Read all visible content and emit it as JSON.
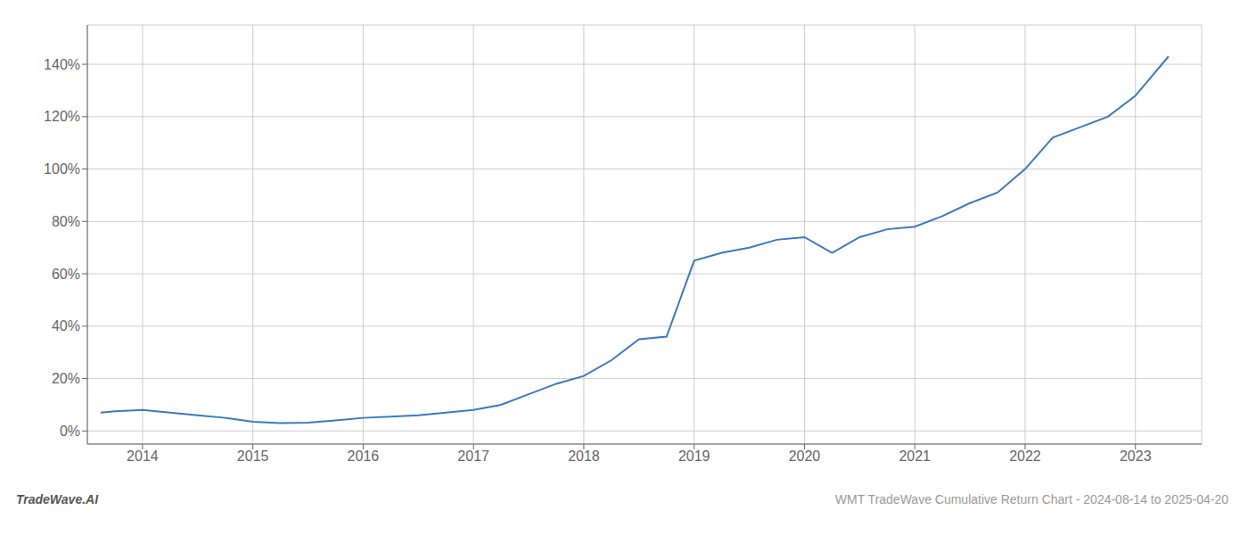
{
  "chart_data": {
    "type": "line",
    "title": "WMT TradeWave Cumulative Return Chart - 2024-08-14 to 2025-04-20",
    "annotations": [
      "TradeWave.AI"
    ],
    "x": [
      2013.62,
      2013.75,
      2014.0,
      2014.25,
      2014.5,
      2014.75,
      2015.0,
      2015.25,
      2015.5,
      2015.75,
      2016.0,
      2016.25,
      2016.5,
      2016.75,
      2017.0,
      2017.25,
      2017.5,
      2017.75,
      2018.0,
      2018.25,
      2018.5,
      2018.75,
      2019.0,
      2019.25,
      2019.5,
      2019.75,
      2020.0,
      2020.25,
      2020.5,
      2020.75,
      2021.0,
      2021.25,
      2021.5,
      2021.75,
      2022.0,
      2022.25,
      2022.5,
      2022.75,
      2023.0,
      2023.3
    ],
    "values": [
      7,
      7.5,
      8,
      7,
      6,
      5,
      3.5,
      3,
      3.2,
      4,
      5,
      5.5,
      6,
      7,
      8,
      10,
      14,
      18,
      21,
      27,
      35,
      36,
      65,
      68,
      70,
      73,
      74,
      68,
      74,
      77,
      78,
      82,
      87,
      91,
      100,
      112,
      116,
      120,
      128,
      143
    ],
    "color": "#3a7abf",
    "xlim": [
      2013.5,
      2023.6
    ],
    "xticks": [
      2014,
      2015,
      2016,
      2017,
      2018,
      2019,
      2020,
      2021,
      2022,
      2023
    ],
    "ylim": [
      -5,
      155
    ],
    "yticks": [
      {
        "value": 0,
        "label": "0%"
      },
      {
        "value": 20,
        "label": "20%"
      },
      {
        "value": 40,
        "label": "40%"
      },
      {
        "value": 60,
        "label": "60%"
      },
      {
        "value": 80,
        "label": "80%"
      },
      {
        "value": 100,
        "label": "100%"
      },
      {
        "value": 120,
        "label": "120%"
      },
      {
        "value": 140,
        "label": "140%"
      }
    ],
    "grid": true
  }
}
